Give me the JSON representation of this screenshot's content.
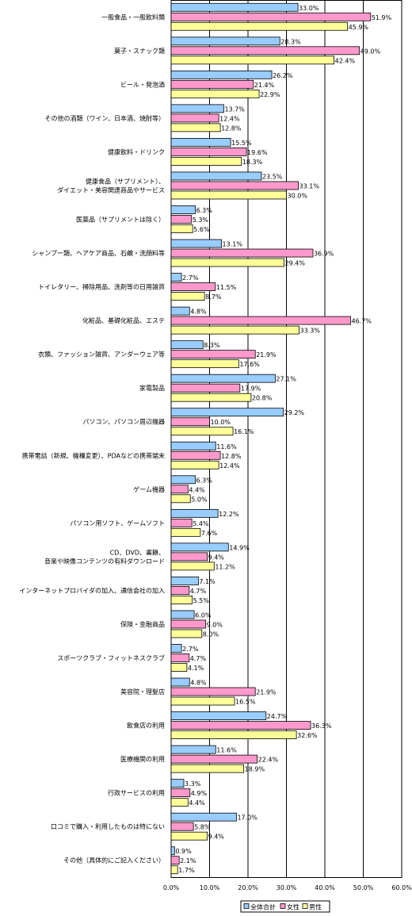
{
  "chart_data": {
    "type": "bar",
    "orientation": "horizontal",
    "categories": [
      "一般食品・一般飲料類",
      "菓子・スナック類",
      "ビール・発泡酒",
      "その他の酒類（ワイン、日本酒、焼酎等）",
      "健康飲料・ドリンク",
      "健康食品（サプリメント）、ダイエット・美容関連商品やサービス",
      "医薬品（サプリメントは除く）",
      "シャンプー類、ヘアケア商品、石鹸・洗顔料等",
      "トイレタリー、掃除用品、洗剤等の日用雑貨",
      "化粧品、基礎化粧品、エステ",
      "衣類、ファッション雑貨、アンダーウェア等",
      "家電製品",
      "パソコン、パソコン周辺機器",
      "携帯電話（新規、機種変更）、PDAなどの携帯端末",
      "ゲーム機器",
      "パソコン用ソフト、ゲームソフト",
      "CD、DVD、書籍、音楽や映像コンテンツの有料ダウンロード",
      "インターネットプロバイダの加入、通信会社の加入",
      "保険・金融商品",
      "スポーツクラブ・フィットネスクラブ",
      "美容院・理髪店",
      "飲食店の利用",
      "医療機関の利用",
      "行政サービスの利用",
      "口コミで購入・利用したものは特にない",
      "その他（具体的にご記入ください）"
    ],
    "category_lines": [
      [
        "一般食品・一般飲料類"
      ],
      [
        "菓子・スナック類"
      ],
      [
        "ビール・発泡酒"
      ],
      [
        "その他の酒類（ワイン、日本酒、焼酎等）"
      ],
      [
        "健康飲料・ドリンク"
      ],
      [
        "健康食品（サプリメント）、",
        "ダイエット・美容関連商品やサービス"
      ],
      [
        "医薬品（サプリメントは除く）"
      ],
      [
        "シャンプー類、ヘアケア商品、石鹸・洗顔料等"
      ],
      [
        "トイレタリー、掃除用品、洗剤等の日用雑貨"
      ],
      [
        "化粧品、基礎化粧品、エステ"
      ],
      [
        "衣類、ファッション雑貨、アンダーウェア等"
      ],
      [
        "家電製品"
      ],
      [
        "パソコン、パソコン周辺機器"
      ],
      [
        "携帯電話（新規、機種変更）、PDAなどの携帯端末"
      ],
      [
        "ゲーム機器"
      ],
      [
        "パソコン用ソフト、ゲームソフト"
      ],
      [
        "CD、DVD、書籍、",
        "音楽や映像コンテンツの有料ダウンロード"
      ],
      [
        "インターネットプロバイダの加入、通信会社の加入"
      ],
      [
        "保険・金融商品"
      ],
      [
        "スポーツクラブ・フィットネスクラブ"
      ],
      [
        "美容院・理髪店"
      ],
      [
        "飲食店の利用"
      ],
      [
        "医療機関の利用"
      ],
      [
        "行政サービスの利用"
      ],
      [
        "口コミで購入・利用したものは特にない"
      ],
      [
        "その他（具体的にご記入ください）"
      ]
    ],
    "series": [
      {
        "name": "全体合計",
        "color": "#99ccff",
        "values": [
          33.0,
          28.3,
          26.2,
          13.7,
          15.5,
          23.5,
          6.3,
          13.1,
          2.7,
          4.8,
          8.3,
          27.1,
          29.2,
          11.6,
          6.3,
          12.2,
          14.9,
          7.1,
          6.0,
          2.7,
          4.8,
          24.7,
          11.6,
          3.3,
          17.0,
          0.9
        ]
      },
      {
        "name": "女性",
        "color": "#ff99cc",
        "values": [
          51.9,
          49.0,
          21.4,
          12.4,
          19.6,
          33.1,
          5.3,
          36.9,
          11.5,
          46.7,
          21.9,
          17.9,
          10.0,
          12.8,
          4.4,
          5.4,
          9.4,
          4.7,
          9.0,
          4.7,
          21.9,
          36.3,
          22.4,
          4.9,
          5.8,
          2.1
        ]
      },
      {
        "name": "男性",
        "color": "#ffff99",
        "values": [
          45.9,
          42.4,
          22.9,
          12.8,
          18.3,
          30.0,
          5.6,
          29.4,
          8.7,
          33.3,
          17.6,
          20.8,
          16.1,
          12.4,
          5.0,
          7.6,
          11.2,
          5.5,
          8.0,
          4.1,
          16.5,
          32.6,
          18.9,
          4.4,
          9.4,
          1.7
        ]
      }
    ],
    "value_labels": [
      [
        "33.0%",
        "51.9%",
        "45.9%"
      ],
      [
        "28.3%",
        "49.0%",
        "42.4%"
      ],
      [
        "26.2%",
        "21.4%",
        "22.9%"
      ],
      [
        "13.7%",
        "12.4%",
        "12.8%"
      ],
      [
        "15.5%",
        "19.6%",
        "18.3%"
      ],
      [
        "23.5%",
        "33.1%",
        "30.0%"
      ],
      [
        "6.3%",
        "5.3%",
        "5.6%"
      ],
      [
        "13.1%",
        "36.9%",
        "29.4%"
      ],
      [
        "2.7%",
        "11.5%",
        "8.7%"
      ],
      [
        "4.8%",
        "46.7%",
        "33.3%"
      ],
      [
        "8.3%",
        "21.9%",
        "17.6%"
      ],
      [
        "27.1%",
        "17.9%",
        "20.8%"
      ],
      [
        "29.2%",
        "10.0%",
        "16.1%"
      ],
      [
        "11.6%",
        "12.8%",
        "12.4%"
      ],
      [
        "6.3%",
        "4.4%",
        "5.0%"
      ],
      [
        "12.2%",
        "5.4%",
        "7.6%"
      ],
      [
        "14.9%",
        "9.4%",
        "11.2%"
      ],
      [
        "7.1%",
        "4.7%",
        "5.5%"
      ],
      [
        "6.0%",
        "9.0%",
        "8.0%"
      ],
      [
        "2.7%",
        "4.7%",
        "4.1%"
      ],
      [
        "4.8%",
        "21.9%",
        "16.5%"
      ],
      [
        "24.7%",
        "36.3%",
        "32.6%"
      ],
      [
        "11.6%",
        "22.4%",
        "18.9%"
      ],
      [
        "3.3%",
        "4.9%",
        "4.4%"
      ],
      [
        "17.0%",
        "5.8%",
        "9.4%"
      ],
      [
        "0.9%",
        "2.1%",
        "1.7%"
      ]
    ],
    "xlim": [
      0,
      60
    ],
    "xticks": [
      0,
      10,
      20,
      30,
      40,
      50,
      60
    ],
    "xtick_labels": [
      "0.0%",
      "10.0%",
      "20.0%",
      "30.0%",
      "40.0%",
      "50.0%",
      "60.0%"
    ],
    "grid": true,
    "legend_position": "bottom-right",
    "title": "",
    "xlabel": "",
    "ylabel": ""
  }
}
